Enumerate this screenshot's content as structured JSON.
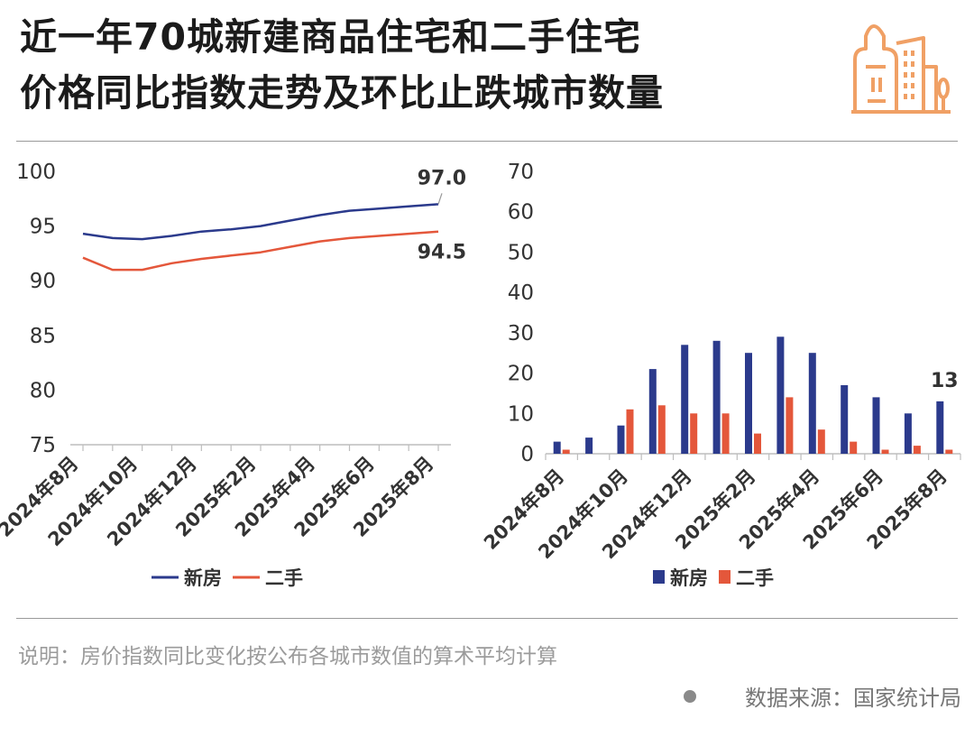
{
  "title": {
    "line1": "近一年70城新建商品住宅和二手住宅",
    "line2": "价格同比指数走势及环比止跌城市数量"
  },
  "colors": {
    "new": "#2b3a8c",
    "second": "#e4573b",
    "logo": "#f0a065",
    "axis": "#bdbdbd",
    "text": "#333333"
  },
  "chart_data": [
    {
      "type": "line",
      "x": [
        "2024年8月",
        "2024年9月",
        "2024年10月",
        "2024年11月",
        "2024年12月",
        "2025年1月",
        "2025年2月",
        "2025年3月",
        "2025年4月",
        "2025年5月",
        "2025年6月",
        "2025年7月",
        "2025年8月"
      ],
      "x_tick_labels": [
        "2024年8月",
        "2024年10月",
        "2024年12月",
        "2025年2月",
        "2025年4月",
        "2025年6月",
        "2025年8月"
      ],
      "series": [
        {
          "name": "新房",
          "values": [
            94.3,
            93.9,
            93.8,
            94.1,
            94.5,
            94.7,
            95.0,
            95.5,
            96.0,
            96.4,
            96.6,
            96.8,
            97.0
          ]
        },
        {
          "name": "二手",
          "values": [
            92.1,
            91.0,
            91.0,
            91.6,
            92.0,
            92.3,
            92.6,
            93.1,
            93.6,
            93.9,
            94.1,
            94.3,
            94.5
          ]
        }
      ],
      "data_labels": [
        "97.0",
        "94.5"
      ],
      "ylim": [
        75,
        100
      ],
      "y_ticks": [
        75,
        80,
        85,
        90,
        95,
        100
      ],
      "legend": [
        "新房",
        "二手"
      ],
      "legend_position": "bottom",
      "grid": false
    },
    {
      "type": "bar",
      "categories": [
        "2024年8月",
        "2024年9月",
        "2024年10月",
        "2024年11月",
        "2024年12月",
        "2025年1月",
        "2025年2月",
        "2025年3月",
        "2025年4月",
        "2025年5月",
        "2025年6月",
        "2025年7月",
        "2025年8月"
      ],
      "x_tick_labels": [
        "2024年8月",
        "2024年10月",
        "2024年12月",
        "2025年2月",
        "2025年4月",
        "2025年6月",
        "2025年8月"
      ],
      "series": [
        {
          "name": "新房",
          "values": [
            3,
            4,
            7,
            21,
            27,
            28,
            25,
            29,
            25,
            17,
            14,
            10,
            13
          ]
        },
        {
          "name": "二手",
          "values": [
            1,
            0,
            11,
            12,
            10,
            10,
            5,
            14,
            6,
            3,
            1,
            2,
            1
          ]
        }
      ],
      "data_labels": [
        "13"
      ],
      "ylim": [
        0,
        70
      ],
      "y_ticks": [
        0,
        10,
        20,
        30,
        40,
        50,
        60,
        70
      ],
      "legend": [
        "新房",
        "二手"
      ],
      "legend_position": "bottom",
      "grid": false
    }
  ],
  "note": "说明：房价指数同比变化按公布各城市数值的算术平均计算",
  "source": "数据来源：国家统计局"
}
